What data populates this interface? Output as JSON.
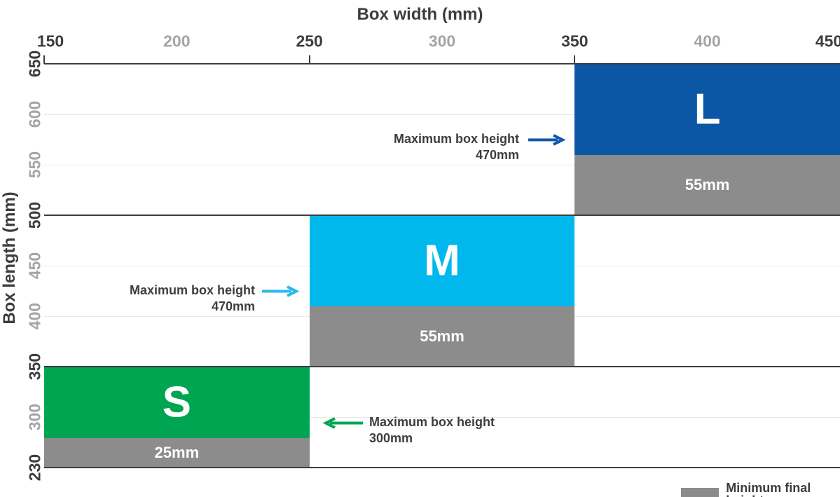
{
  "chart_data": {
    "type": "bar",
    "title": "",
    "xlabel": "Box width (mm)",
    "ylabel": "Box length (mm)",
    "xlim": [
      150,
      450
    ],
    "ylim": [
      230,
      650
    ],
    "grid": true,
    "legend_position": "bottom-right",
    "x_ticks": [
      {
        "value": 150,
        "label": "150",
        "emphasis": true
      },
      {
        "value": 200,
        "label": "200",
        "emphasis": false
      },
      {
        "value": 250,
        "label": "250",
        "emphasis": true
      },
      {
        "value": 300,
        "label": "300",
        "emphasis": false
      },
      {
        "value": 350,
        "label": "350",
        "emphasis": true
      },
      {
        "value": 400,
        "label": "400",
        "emphasis": false
      },
      {
        "value": 450,
        "label": "450",
        "emphasis": true
      }
    ],
    "y_ticks": [
      {
        "value": 650,
        "label": "650",
        "emphasis": true
      },
      {
        "value": 600,
        "label": "600",
        "emphasis": false
      },
      {
        "value": 550,
        "label": "550",
        "emphasis": false
      },
      {
        "value": 500,
        "label": "500",
        "emphasis": true
      },
      {
        "value": 450,
        "label": "450",
        "emphasis": false
      },
      {
        "value": 400,
        "label": "400",
        "emphasis": false
      },
      {
        "value": 350,
        "label": "350",
        "emphasis": true
      },
      {
        "value": 300,
        "label": "300",
        "emphasis": false
      },
      {
        "value": 230,
        "label": "230",
        "emphasis": true
      }
    ],
    "sizes": [
      {
        "id": "L",
        "letter": "L",
        "box_width_mm": [
          350,
          450
        ],
        "box_length_mm": [
          500,
          650
        ],
        "max_box_height": "470mm",
        "min_final_height": "55mm",
        "color": "#0b57a6"
      },
      {
        "id": "M",
        "letter": "M",
        "box_width_mm": [
          250,
          350
        ],
        "box_length_mm": [
          350,
          500
        ],
        "max_box_height": "470mm",
        "min_final_height": "55mm",
        "color": "#00b8ec"
      },
      {
        "id": "S",
        "letter": "S",
        "box_width_mm": [
          150,
          250
        ],
        "box_length_mm": [
          230,
          350
        ],
        "max_box_height": "300mm",
        "min_final_height": "25mm",
        "color": "#00a551"
      }
    ],
    "annotations": [
      {
        "target": "L",
        "line1": "Maximum box height",
        "line2": "470mm",
        "direction": "right",
        "arrow_color": "#0f57a8"
      },
      {
        "target": "M",
        "line1": "Maximum box height",
        "line2": "470mm",
        "direction": "right",
        "arrow_color": "#29b9ea"
      },
      {
        "target": "S",
        "line1": "Maximum box height",
        "line2": "300mm",
        "direction": "left",
        "arrow_color": "#00a551"
      }
    ],
    "legend": {
      "label": "Minimum final height",
      "swatch_color": "#8c8c8c"
    },
    "colors": {
      "min_final_band": "#8c8c8c",
      "axis_dark": "#3d3d3d",
      "tick_muted": "#a5a5a5",
      "grid_light": "#e9e9e9",
      "box_text": "#ffffff"
    }
  }
}
